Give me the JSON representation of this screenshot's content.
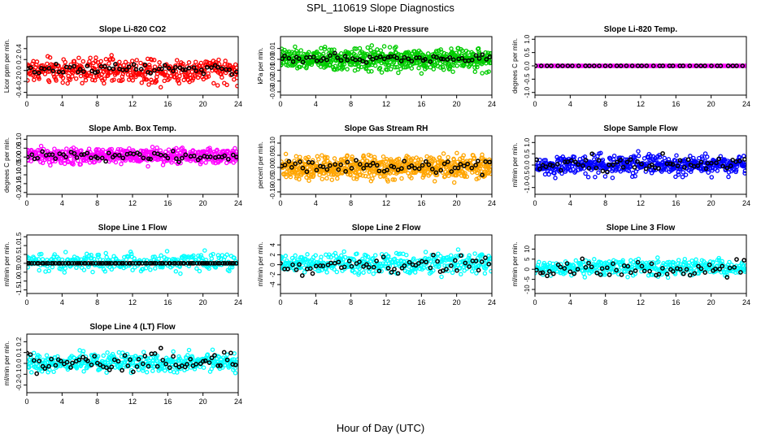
{
  "figure": {
    "title": "SPL_110619  Slope Diagnostics",
    "xlabel": "Hour of Day (UTC)"
  },
  "chart_data": [
    {
      "type": "scatter",
      "title": "Slope Li-820 CO2",
      "ylabel": "Licor ppm per min.",
      "xlim": [
        0,
        24
      ],
      "xticks": [
        0,
        4,
        8,
        12,
        16,
        20,
        24
      ],
      "ylim": [
        -0.45,
        0.62
      ],
      "yticks": [
        -0.4,
        -0.2,
        0.0,
        0.2,
        0.4
      ],
      "ytick_labels": [
        "-0.4",
        "-0.2",
        "0.0",
        "0.2",
        "0.4"
      ],
      "series": [
        {
          "color": "#ff0000",
          "band": [
            -0.3,
            0.3
          ],
          "n": 420
        },
        {
          "color": "#000000",
          "band": [
            -0.1,
            0.15
          ],
          "n": 60
        }
      ]
    },
    {
      "type": "scatter",
      "title": "Slope Li-820 Pressure",
      "ylabel": "kPa per min.",
      "xlim": [
        0,
        24
      ],
      "xticks": [
        0,
        4,
        8,
        12,
        16,
        20,
        24
      ],
      "ylim": [
        -0.033,
        0.021
      ],
      "yticks": [
        -0.03,
        -0.02,
        -0.01,
        0.0,
        0.01
      ],
      "ytick_labels": [
        "-0.03",
        "-0.02",
        "-0.01",
        "0.00",
        "0.01"
      ],
      "series": [
        {
          "color": "#00cc00",
          "band": [
            -0.012,
            0.012
          ],
          "n": 600
        },
        {
          "color": "#000000",
          "band": [
            -0.004,
            0.006
          ],
          "n": 60
        }
      ]
    },
    {
      "type": "scatter",
      "title": "Slope Li-820 Temp.",
      "ylabel": "degrees C per min.",
      "xlim": [
        0,
        24
      ],
      "xticks": [
        0,
        4,
        8,
        12,
        16,
        20,
        24
      ],
      "ylim": [
        -1.1,
        1.1
      ],
      "yticks": [
        -1.0,
        -0.5,
        0.0,
        0.5,
        1.0
      ],
      "ytick_labels": [
        "-1.0",
        "-0.5",
        "0.0",
        "0.5",
        "1.0"
      ],
      "series": [
        {
          "color": "#ff00ff",
          "band": [
            0,
            0
          ],
          "n": 160
        },
        {
          "color": "#000000",
          "band": [
            0,
            0
          ],
          "n": 40
        }
      ]
    },
    {
      "type": "scatter",
      "title": "Slope Amb. Box Temp.",
      "ylabel": "degrees C per min.",
      "xlim": [
        0,
        24
      ],
      "xticks": [
        0,
        4,
        8,
        12,
        16,
        20,
        24
      ],
      "ylim": [
        -0.21,
        0.12
      ],
      "yticks": [
        -0.2,
        -0.15,
        -0.1,
        -0.05,
        0.0,
        0.05,
        0.1
      ],
      "ytick_labels": [
        "-0.20",
        "-0.15",
        "-0.10",
        "-0.05",
        "0.00",
        "0.05",
        "0.10"
      ],
      "series": [
        {
          "color": "#ff00ff",
          "band": [
            -0.05,
            0.06
          ],
          "n": 480
        },
        {
          "color": "#000000",
          "band": [
            -0.03,
            0.04
          ],
          "n": 60
        }
      ]
    },
    {
      "type": "scatter",
      "title": "Slope Gas Stream RH",
      "ylabel": "percent per min.",
      "xlim": [
        0,
        24
      ],
      "xticks": [
        0,
        4,
        8,
        12,
        16,
        20,
        24
      ],
      "ylim": [
        -0.11,
        0.13
      ],
      "yticks": [
        -0.1,
        -0.05,
        0.0,
        0.05,
        0.1
      ],
      "ytick_labels": [
        "-0.10",
        "-0.05",
        "0.00",
        "0.05",
        "0.10"
      ],
      "series": [
        {
          "color": "#ffa500",
          "band": [
            -0.06,
            0.06
          ],
          "n": 650
        },
        {
          "color": "#000000",
          "band": [
            -0.03,
            0.04
          ],
          "n": 60
        }
      ]
    },
    {
      "type": "scatter",
      "title": "Slope Sample Flow",
      "ylabel": "ml/min per min.",
      "xlim": [
        0,
        24
      ],
      "xticks": [
        0,
        4,
        8,
        12,
        16,
        20,
        24
      ],
      "ylim": [
        -1.3,
        1.3
      ],
      "yticks": [
        -1.0,
        -0.5,
        0.0,
        0.5,
        1.0
      ],
      "ytick_labels": [
        "-1.0",
        "-0.5",
        "0.0",
        "0.5",
        "1.0"
      ],
      "series": [
        {
          "color": "#0000ff",
          "band": [
            -0.6,
            0.6
          ],
          "n": 480
        },
        {
          "color": "#000000",
          "band": [
            -0.4,
            0.5
          ],
          "n": 60
        }
      ]
    },
    {
      "type": "scatter",
      "title": "Slope Line 1 Flow",
      "ylabel": "ml/min per min.",
      "xlim": [
        0,
        24
      ],
      "xticks": [
        0,
        4,
        8,
        12,
        16,
        20,
        24
      ],
      "ylim": [
        -1.7,
        1.6
      ],
      "yticks": [
        -1.5,
        -1.0,
        -0.5,
        0.0,
        0.5,
        1.0,
        1.5
      ],
      "ytick_labels": [
        "-1.5",
        "-1.0",
        "-0.5",
        "0.0",
        "0.5",
        "1.0",
        "1.5"
      ],
      "series": [
        {
          "color": "#00ffff",
          "band": [
            -0.6,
            0.7
          ],
          "n": 300
        },
        {
          "color": "#000000",
          "band": [
            0,
            0
          ],
          "n": 90
        }
      ]
    },
    {
      "type": "scatter",
      "title": "Slope Line 2 Flow",
      "ylabel": "ml/min per min.",
      "xlim": [
        0,
        24
      ],
      "xticks": [
        0,
        4,
        8,
        12,
        16,
        20,
        24
      ],
      "ylim": [
        -5.8,
        6
      ],
      "yticks": [
        -4,
        -2,
        0,
        2,
        4
      ],
      "ytick_labels": [
        "-4",
        "-2",
        "0",
        "2",
        "4"
      ],
      "series": [
        {
          "color": "#00ffff",
          "band": [
            -2.5,
            3
          ],
          "n": 380
        },
        {
          "color": "#000000",
          "band": [
            -2.5,
            2.5
          ],
          "n": 60
        }
      ]
    },
    {
      "type": "scatter",
      "title": "Slope Line 3 Flow",
      "ylabel": "ml/min per min.",
      "xlim": [
        0,
        24
      ],
      "xticks": [
        0,
        4,
        8,
        12,
        16,
        20,
        24
      ],
      "ylim": [
        -12,
        17
      ],
      "yticks": [
        -10,
        -5,
        0,
        5,
        10
      ],
      "ytick_labels": [
        "-10",
        "-5",
        "0",
        "5",
        "10"
      ],
      "series": [
        {
          "color": "#00ffff",
          "band": [
            -4,
            6
          ],
          "n": 380
        },
        {
          "color": "#000000",
          "band": [
            -5,
            5
          ],
          "n": 60
        }
      ]
    },
    {
      "type": "scatter",
      "title": "Slope Line 4 (LT) Flow",
      "ylabel": "ml/min per min.",
      "xlim": [
        0,
        24
      ],
      "xticks": [
        0,
        4,
        8,
        12,
        16,
        20,
        24
      ],
      "ylim": [
        -0.27,
        0.27
      ],
      "yticks": [
        -0.2,
        -0.1,
        0.0,
        0.1,
        0.2
      ],
      "ytick_labels": [
        "-0.2",
        "-0.1",
        "0.0",
        "0.1",
        "0.2"
      ],
      "series": [
        {
          "color": "#00ffff",
          "band": [
            -0.1,
            0.12
          ],
          "n": 420
        },
        {
          "color": "#000000",
          "band": [
            -0.12,
            0.14
          ],
          "n": 70
        }
      ]
    }
  ]
}
